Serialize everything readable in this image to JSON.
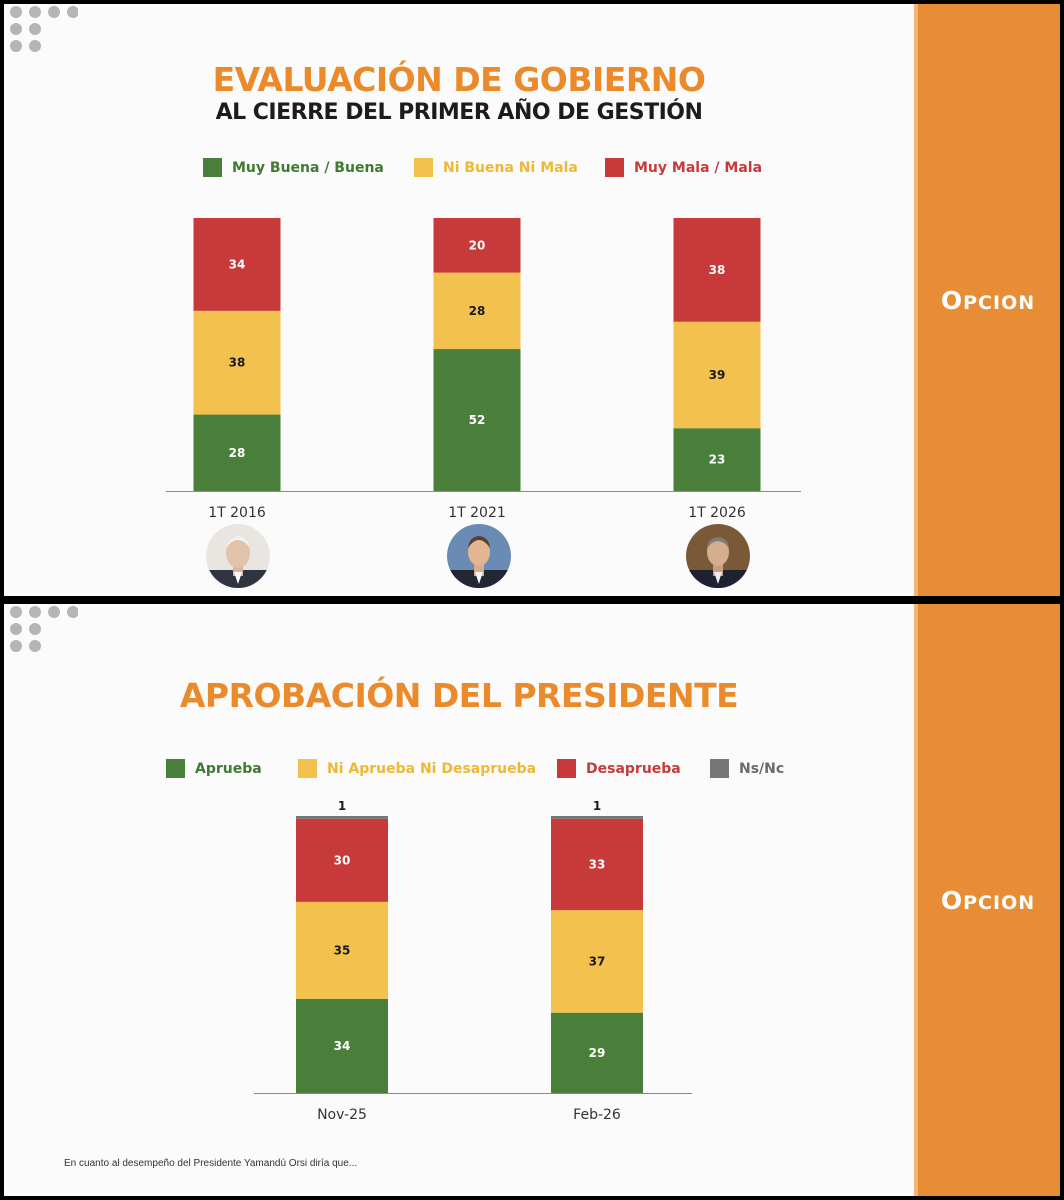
{
  "colors": {
    "green": "#4a7f3b",
    "yellow": "#f3c24e",
    "red": "#c8393a",
    "gray": "#767676",
    "orange": "#e68d35",
    "title_orange": "#ea8a2a"
  },
  "brand": {
    "logo_first": "O",
    "logo_rest": "PCION"
  },
  "slide1": {
    "title": "EVALUACIÓN DE GOBIERNO",
    "subtitle": "AL CIERRE DEL PRIMER AÑO DE GESTIÓN",
    "legend": [
      {
        "label": "Muy Buena / Buena",
        "color": "#4a7f3b"
      },
      {
        "label": "Ni Buena Ni Mala",
        "color": "#f3c24e"
      },
      {
        "label": "Muy Mala / Mala",
        "color": "#c8393a"
      }
    ],
    "portraits": [
      "person-portrait-icon",
      "person-portrait-icon",
      "person-portrait-icon"
    ]
  },
  "slide2": {
    "title": "APROBACIÓN DEL PRESIDENTE",
    "legend": [
      {
        "label": "Aprueba",
        "color": "#4a7f3b"
      },
      {
        "label": "Ni Aprueba Ni Desaprueba",
        "color": "#f3c24e"
      },
      {
        "label": "Desaprueba",
        "color": "#c8393a"
      },
      {
        "label": "Ns/Nc",
        "color": "#767676"
      }
    ],
    "footnote": "En cuanto al desempeño del Presidente Yamandú Orsi diría que..."
  },
  "chart_data": [
    {
      "type": "bar",
      "stacked": true,
      "categories": [
        "1T 2016",
        "1T 2021",
        "1T 2026"
      ],
      "series": [
        {
          "name": "Muy Buena / Buena",
          "values": [
            28,
            52,
            23
          ]
        },
        {
          "name": "Ni Buena Ni Mala",
          "values": [
            38,
            28,
            39
          ]
        },
        {
          "name": "Muy Mala / Mala",
          "values": [
            34,
            20,
            38
          ]
        }
      ],
      "title": "EVALUACIÓN DE GOBIERNO",
      "subtitle": "AL CIERRE DEL PRIMER AÑO DE GESTIÓN",
      "ylim": [
        0,
        100
      ],
      "grid": false,
      "legend": "top"
    },
    {
      "type": "bar",
      "stacked": true,
      "categories": [
        "Nov-25",
        "Feb-26"
      ],
      "series": [
        {
          "name": "Aprueba",
          "values": [
            34,
            29
          ]
        },
        {
          "name": "Ni Aprueba Ni Desaprueba",
          "values": [
            35,
            37
          ]
        },
        {
          "name": "Desaprueba",
          "values": [
            30,
            33
          ]
        },
        {
          "name": "Ns/Nc",
          "values": [
            1,
            1
          ]
        }
      ],
      "title": "APROBACIÓN DEL PRESIDENTE",
      "ylim": [
        0,
        100
      ],
      "grid": false,
      "legend": "top"
    }
  ]
}
